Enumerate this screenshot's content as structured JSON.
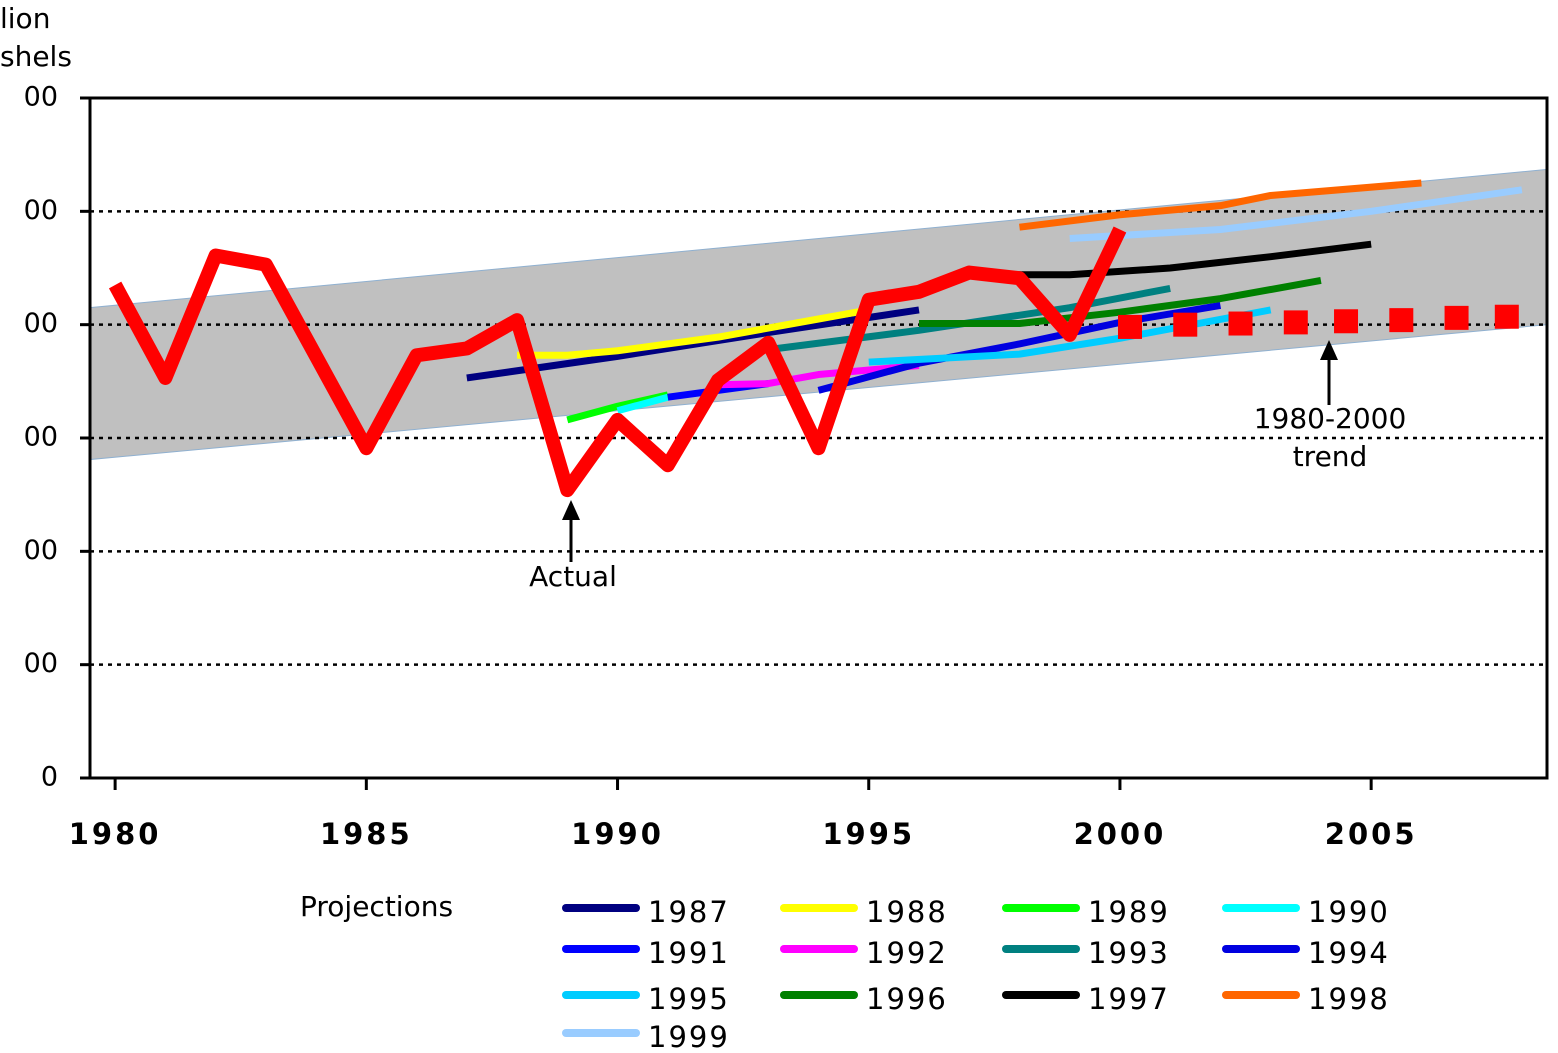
{
  "chart_data": {
    "type": "line",
    "y_label": [
      "lion",
      "shels"
    ],
    "xlim": [
      1979.5,
      2008.5
    ],
    "xticks": [
      1980,
      1985,
      1990,
      1995,
      2000,
      2005
    ],
    "ylim": [
      0,
      600
    ],
    "yticks": [
      {
        "value": 0,
        "label": "0"
      },
      {
        "value": 100,
        "label": "00"
      },
      {
        "value": 200,
        "label": "00"
      },
      {
        "value": 300,
        "label": "00"
      },
      {
        "value": 400,
        "label": "00"
      },
      {
        "value": 500,
        "label": "00"
      },
      {
        "value": 600,
        "label": "00"
      }
    ],
    "grid": true,
    "band": {
      "color": "#c0c0c0",
      "x": [
        1979.5,
        2008.5
      ],
      "upper": [
        415,
        537
      ],
      "lower": [
        281,
        400
      ]
    },
    "legend_title": "Projections",
    "series": [
      {
        "name": "1987",
        "color": "#000080",
        "x": [
          1987,
          1990,
          1993,
          1996
        ],
        "values": [
          353,
          372,
          393,
          413
        ]
      },
      {
        "name": "1988",
        "color": "#ffff00",
        "x": [
          1988,
          1989,
          1990,
          1992,
          1994,
          1995
        ],
        "values": [
          373,
          373,
          377,
          389,
          405,
          413
        ]
      },
      {
        "name": "1989",
        "color": "#00ff00",
        "x": [
          1989,
          1990,
          1991
        ],
        "values": [
          316,
          328,
          338
        ]
      },
      {
        "name": "1990",
        "color": "#00ffff",
        "x": [
          1990,
          1991
        ],
        "values": [
          324,
          336
        ]
      },
      {
        "name": "1991",
        "color": "#0000ff",
        "x": [
          1991,
          1993
        ],
        "values": [
          336,
          348
        ]
      },
      {
        "name": "1992",
        "color": "#ff00ff",
        "x": [
          1992,
          1993,
          1994,
          1996
        ],
        "values": [
          347,
          348,
          356,
          364
        ]
      },
      {
        "name": "1993",
        "color": "#008080",
        "x": [
          1993,
          1996,
          1999,
          2001
        ],
        "values": [
          378,
          395,
          415,
          432
        ]
      },
      {
        "name": "1994",
        "color": "#0000e0",
        "x": [
          1994,
          1996,
          1998,
          2000,
          2002
        ],
        "values": [
          342,
          366,
          383,
          402,
          417
        ]
      },
      {
        "name": "1995",
        "color": "#00ccff",
        "x": [
          1995,
          1998,
          2000,
          2003
        ],
        "values": [
          367,
          374,
          388,
          413
        ]
      },
      {
        "name": "1996",
        "color": "#008000",
        "x": [
          1996,
          1998,
          2000,
          2002,
          2004
        ],
        "values": [
          401,
          401,
          411,
          423,
          439
        ]
      },
      {
        "name": "1997",
        "color": "#000000",
        "x": [
          1997,
          1999,
          2001,
          2003,
          2005
        ],
        "values": [
          444,
          444,
          450,
          460,
          471
        ]
      },
      {
        "name": "1998",
        "color": "#ff6600",
        "x": [
          1998,
          2000,
          2002,
          2003,
          2006
        ],
        "values": [
          486,
          497,
          505,
          514,
          525
        ]
      },
      {
        "name": "1999",
        "color": "#99ccff",
        "x": [
          1999,
          2002,
          2005,
          2008
        ],
        "values": [
          476,
          484,
          500,
          519
        ]
      }
    ],
    "actual": {
      "color": "#ff0000",
      "label": "Actual",
      "x": [
        1980,
        1981,
        1982,
        1983,
        1984,
        1985,
        1986,
        1987,
        1988,
        1989,
        1990,
        1991,
        1992,
        1993,
        1994,
        1995,
        1996,
        1997,
        1998,
        1999,
        2000
      ],
      "values": [
        435,
        353,
        461,
        453,
        372,
        291,
        373,
        379,
        404,
        254,
        316,
        276,
        351,
        384,
        291,
        422,
        429,
        446,
        441,
        391,
        484
      ]
    },
    "trend": {
      "color": "#ff0000",
      "label": [
        "1980-2000",
        "trend"
      ],
      "x": [
        2000.2,
        2001.3,
        2002.4,
        2003.5,
        2004.5,
        2005.6,
        2006.7,
        2007.7
      ],
      "values": [
        398,
        400,
        401,
        402,
        403,
        404,
        406,
        407
      ]
    }
  }
}
